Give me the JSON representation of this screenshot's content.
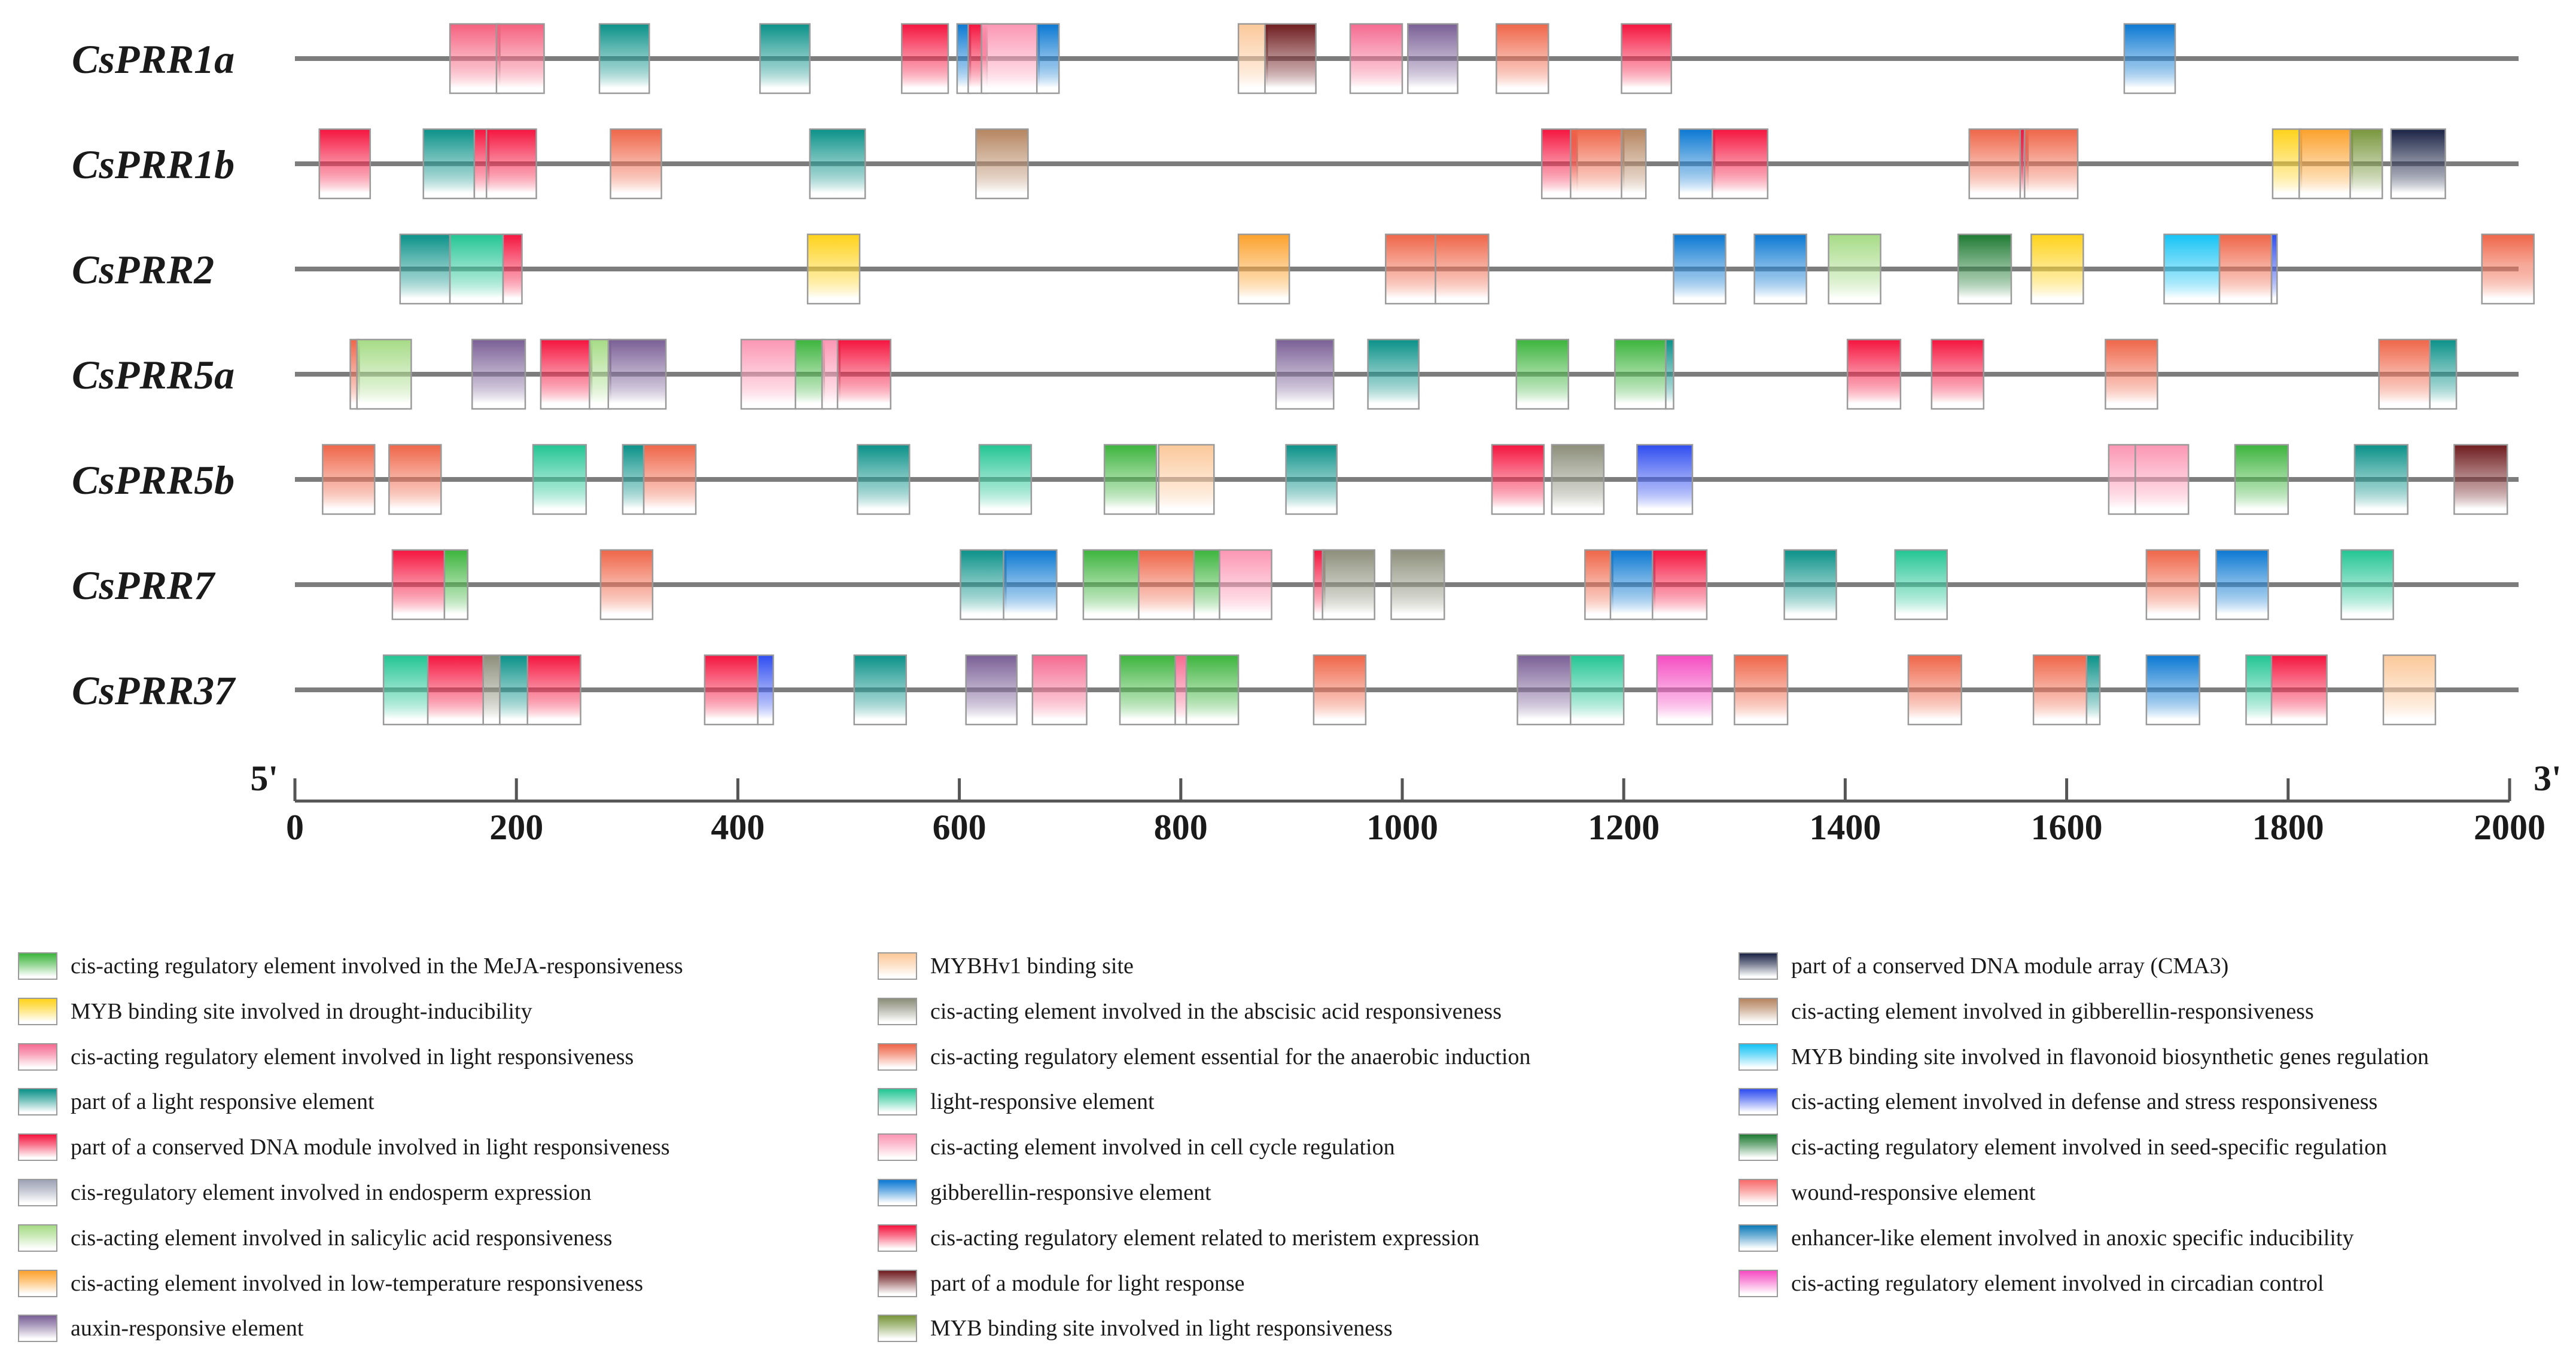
{
  "genes": [
    {
      "name": "CsPRR1a",
      "elements": [
        {
          "start": 140,
          "end": 185,
          "type": "wound-resp"
        },
        {
          "start": 182,
          "end": 225,
          "type": "wound-resp"
        },
        {
          "start": 275,
          "end": 320,
          "type": "light-part"
        },
        {
          "start": 420,
          "end": 465,
          "type": "light-part"
        },
        {
          "start": 548,
          "end": 590,
          "type": "dna-module"
        },
        {
          "start": 598,
          "end": 610,
          "type": "ga-resp"
        },
        {
          "start": 608,
          "end": 625,
          "type": "dna-module"
        },
        {
          "start": 620,
          "end": 672,
          "type": "cell-cycle"
        },
        {
          "start": 670,
          "end": 690,
          "type": "ga-resp"
        },
        {
          "start": 852,
          "end": 878,
          "type": "mybhv1"
        },
        {
          "start": 876,
          "end": 922,
          "type": "light-module"
        },
        {
          "start": 953,
          "end": 1000,
          "type": "light-resp-reg"
        },
        {
          "start": 1005,
          "end": 1050,
          "type": "auxin"
        },
        {
          "start": 1085,
          "end": 1132,
          "type": "anaerobic"
        },
        {
          "start": 1198,
          "end": 1243,
          "type": "dna-module"
        },
        {
          "start": 1652,
          "end": 1698,
          "type": "ga-resp"
        }
      ]
    },
    {
      "name": "CsPRR1b",
      "elements": [
        {
          "start": 22,
          "end": 68,
          "type": "dna-module"
        },
        {
          "start": 116,
          "end": 162,
          "type": "light-part"
        },
        {
          "start": 162,
          "end": 175,
          "type": "dna-module"
        },
        {
          "start": 173,
          "end": 218,
          "type": "dna-module"
        },
        {
          "start": 285,
          "end": 331,
          "type": "anaerobic"
        },
        {
          "start": 465,
          "end": 515,
          "type": "light-part"
        },
        {
          "start": 615,
          "end": 662,
          "type": "ga-resp-cis"
        },
        {
          "start": 1126,
          "end": 1158,
          "type": "dna-module"
        },
        {
          "start": 1152,
          "end": 1200,
          "type": "anaerobic"
        },
        {
          "start": 1198,
          "end": 1220,
          "type": "ga-resp-cis"
        },
        {
          "start": 1250,
          "end": 1282,
          "type": "ga-resp"
        },
        {
          "start": 1280,
          "end": 1330,
          "type": "dna-module"
        },
        {
          "start": 1512,
          "end": 1560,
          "type": "anaerobic"
        },
        {
          "start": 1558,
          "end": 1565,
          "type": "dna-module"
        },
        {
          "start": 1562,
          "end": 1610,
          "type": "anaerobic"
        },
        {
          "start": 1786,
          "end": 1812,
          "type": "drought"
        },
        {
          "start": 1810,
          "end": 1858,
          "type": "low-temp"
        },
        {
          "start": 1856,
          "end": 1885,
          "type": "myb-light"
        },
        {
          "start": 1893,
          "end": 1942,
          "type": "cma3"
        }
      ]
    },
    {
      "name": "CsPRR2",
      "elements": [
        {
          "start": 95,
          "end": 140,
          "type": "light-part"
        },
        {
          "start": 140,
          "end": 188,
          "type": "light-resp"
        },
        {
          "start": 188,
          "end": 205,
          "type": "dna-module"
        },
        {
          "start": 463,
          "end": 510,
          "type": "drought"
        },
        {
          "start": 852,
          "end": 898,
          "type": "low-temp"
        },
        {
          "start": 985,
          "end": 1030,
          "type": "anaerobic"
        },
        {
          "start": 1030,
          "end": 1078,
          "type": "anaerobic"
        },
        {
          "start": 1245,
          "end": 1292,
          "type": "ga-resp"
        },
        {
          "start": 1318,
          "end": 1365,
          "type": "ga-resp"
        },
        {
          "start": 1385,
          "end": 1432,
          "type": "salicylic"
        },
        {
          "start": 1502,
          "end": 1550,
          "type": "seed"
        },
        {
          "start": 1568,
          "end": 1615,
          "type": "drought"
        },
        {
          "start": 1688,
          "end": 1738,
          "type": "flavonoid"
        },
        {
          "start": 1738,
          "end": 1785,
          "type": "anaerobic"
        },
        {
          "start": 1785,
          "end": 1790,
          "type": "defense"
        },
        {
          "start": 1975,
          "end": 2022,
          "type": "anaerobic"
        }
      ]
    },
    {
      "name": "CsPRR5a",
      "elements": [
        {
          "start": 50,
          "end": 58,
          "type": "anaerobic"
        },
        {
          "start": 56,
          "end": 105,
          "type": "salicylic"
        },
        {
          "start": 160,
          "end": 208,
          "type": "auxin"
        },
        {
          "start": 222,
          "end": 268,
          "type": "dna-module"
        },
        {
          "start": 266,
          "end": 285,
          "type": "salicylic"
        },
        {
          "start": 283,
          "end": 335,
          "type": "auxin"
        },
        {
          "start": 403,
          "end": 452,
          "type": "cell-cycle"
        },
        {
          "start": 452,
          "end": 478,
          "type": "meja"
        },
        {
          "start": 476,
          "end": 492,
          "type": "cell-cycle"
        },
        {
          "start": 490,
          "end": 538,
          "type": "dna-module"
        },
        {
          "start": 886,
          "end": 938,
          "type": "auxin"
        },
        {
          "start": 969,
          "end": 1015,
          "type": "light-part"
        },
        {
          "start": 1103,
          "end": 1150,
          "type": "meja"
        },
        {
          "start": 1192,
          "end": 1238,
          "type": "meja"
        },
        {
          "start": 1238,
          "end": 1245,
          "type": "light-part"
        },
        {
          "start": 1402,
          "end": 1450,
          "type": "dna-module"
        },
        {
          "start": 1478,
          "end": 1525,
          "type": "dna-module"
        },
        {
          "start": 1635,
          "end": 1682,
          "type": "anaerobic"
        },
        {
          "start": 1882,
          "end": 1928,
          "type": "anaerobic"
        },
        {
          "start": 1928,
          "end": 1952,
          "type": "light-part"
        }
      ]
    },
    {
      "name": "CsPRR5b",
      "elements": [
        {
          "start": 25,
          "end": 72,
          "type": "anaerobic"
        },
        {
          "start": 85,
          "end": 132,
          "type": "anaerobic"
        },
        {
          "start": 215,
          "end": 263,
          "type": "light-resp"
        },
        {
          "start": 296,
          "end": 315,
          "type": "light-part"
        },
        {
          "start": 315,
          "end": 362,
          "type": "anaerobic"
        },
        {
          "start": 508,
          "end": 555,
          "type": "light-part"
        },
        {
          "start": 618,
          "end": 665,
          "type": "light-resp"
        },
        {
          "start": 731,
          "end": 778,
          "type": "meja"
        },
        {
          "start": 780,
          "end": 830,
          "type": "mybhv1"
        },
        {
          "start": 895,
          "end": 941,
          "type": "light-part"
        },
        {
          "start": 1081,
          "end": 1128,
          "type": "dna-module"
        },
        {
          "start": 1135,
          "end": 1182,
          "type": "aba"
        },
        {
          "start": 1212,
          "end": 1262,
          "type": "defense"
        },
        {
          "start": 1638,
          "end": 1662,
          "type": "cell-cycle"
        },
        {
          "start": 1662,
          "end": 1710,
          "type": "cell-cycle"
        },
        {
          "start": 1752,
          "end": 1800,
          "type": "meja"
        },
        {
          "start": 1860,
          "end": 1908,
          "type": "light-part"
        },
        {
          "start": 1950,
          "end": 1998,
          "type": "light-module"
        }
      ]
    },
    {
      "name": "CsPRR7",
      "elements": [
        {
          "start": 88,
          "end": 135,
          "type": "dna-module"
        },
        {
          "start": 135,
          "end": 156,
          "type": "meja"
        },
        {
          "start": 276,
          "end": 323,
          "type": "anaerobic"
        },
        {
          "start": 601,
          "end": 642,
          "type": "light-part"
        },
        {
          "start": 640,
          "end": 688,
          "type": "ga-resp"
        },
        {
          "start": 712,
          "end": 762,
          "type": "meja"
        },
        {
          "start": 762,
          "end": 812,
          "type": "anaerobic"
        },
        {
          "start": 812,
          "end": 835,
          "type": "meja"
        },
        {
          "start": 835,
          "end": 882,
          "type": "cell-cycle"
        },
        {
          "start": 920,
          "end": 930,
          "type": "dna-module"
        },
        {
          "start": 928,
          "end": 975,
          "type": "aba"
        },
        {
          "start": 990,
          "end": 1038,
          "type": "aba"
        },
        {
          "start": 1165,
          "end": 1190,
          "type": "anaerobic"
        },
        {
          "start": 1188,
          "end": 1228,
          "type": "ga-resp"
        },
        {
          "start": 1226,
          "end": 1275,
          "type": "dna-module"
        },
        {
          "start": 1345,
          "end": 1392,
          "type": "light-part"
        },
        {
          "start": 1445,
          "end": 1492,
          "type": "light-resp"
        },
        {
          "start": 1672,
          "end": 1720,
          "type": "anaerobic"
        },
        {
          "start": 1735,
          "end": 1782,
          "type": "ga-resp"
        },
        {
          "start": 1848,
          "end": 1895,
          "type": "light-resp"
        }
      ]
    },
    {
      "name": "CsPRR37",
      "elements": [
        {
          "start": 80,
          "end": 120,
          "type": "light-resp"
        },
        {
          "start": 120,
          "end": 170,
          "type": "dna-module"
        },
        {
          "start": 170,
          "end": 185,
          "type": "aba"
        },
        {
          "start": 185,
          "end": 210,
          "type": "light-part"
        },
        {
          "start": 210,
          "end": 258,
          "type": "dna-module"
        },
        {
          "start": 370,
          "end": 418,
          "type": "dna-module"
        },
        {
          "start": 418,
          "end": 432,
          "type": "defense"
        },
        {
          "start": 505,
          "end": 552,
          "type": "light-part"
        },
        {
          "start": 606,
          "end": 652,
          "type": "auxin"
        },
        {
          "start": 666,
          "end": 715,
          "type": "light-resp-reg"
        },
        {
          "start": 745,
          "end": 795,
          "type": "meja"
        },
        {
          "start": 795,
          "end": 805,
          "type": "light-resp-reg"
        },
        {
          "start": 805,
          "end": 852,
          "type": "meja"
        },
        {
          "start": 920,
          "end": 967,
          "type": "anaerobic"
        },
        {
          "start": 1104,
          "end": 1152,
          "type": "auxin"
        },
        {
          "start": 1152,
          "end": 1200,
          "type": "light-resp"
        },
        {
          "start": 1230,
          "end": 1280,
          "type": "circadian"
        },
        {
          "start": 1300,
          "end": 1348,
          "type": "anaerobic"
        },
        {
          "start": 1457,
          "end": 1505,
          "type": "anaerobic"
        },
        {
          "start": 1570,
          "end": 1618,
          "type": "anaerobic"
        },
        {
          "start": 1618,
          "end": 1630,
          "type": "light-part"
        },
        {
          "start": 1672,
          "end": 1720,
          "type": "ga-resp"
        },
        {
          "start": 1762,
          "end": 1785,
          "type": "light-resp"
        },
        {
          "start": 1785,
          "end": 1835,
          "type": "dna-module"
        },
        {
          "start": 1886,
          "end": 1933,
          "type": "mybhv1"
        }
      ]
    }
  ],
  "axis": {
    "min": 0,
    "max": 2000,
    "tick_step": 200,
    "tick_labels": [
      "0",
      "200",
      "400",
      "600",
      "800",
      "1000",
      "1200",
      "1400",
      "1600",
      "1800",
      "2000"
    ],
    "left_end": "5'",
    "right_end": "3'"
  },
  "element_types": {
    "meja": {
      "label": "cis-acting regulatory element involved in the MeJA-responsiveness",
      "color": "#3cb43c"
    },
    "drought": {
      "label": "MYB binding site involved in drought-inducibility",
      "color": "#ffd21a"
    },
    "light-resp-reg": {
      "label": "cis-acting regulatory element involved in light responsiveness",
      "color": "#f56a90"
    },
    "light-part": {
      "label": "part of a light responsive element",
      "color": "#0a9188"
    },
    "dna-module": {
      "label": "part of a conserved DNA module involved in light responsiveness",
      "color": "#f5143e"
    },
    "endosperm": {
      "label": "cis-regulatory element involved in endosperm expression",
      "color": "#9da2b5"
    },
    "salicylic": {
      "label": "cis-acting element involved in salicylic acid responsiveness",
      "color": "#a6db86"
    },
    "low-temp": {
      "label": "cis-acting element involved in low-temperature responsiveness",
      "color": "#fca12c"
    },
    "auxin": {
      "label": "auxin-responsive element",
      "color": "#7a5f96"
    },
    "mybhv1": {
      "label": "MYBHv1 binding site",
      "color": "#fcc89a"
    },
    "aba": {
      "label": "cis-acting element involved in the abscisic acid responsiveness",
      "color": "#8c8e7a"
    },
    "anaerobic": {
      "label": "cis-acting regulatory element essential for the anaerobic induction",
      "color": "#ef6548"
    },
    "light-resp": {
      "label": "light-responsive element",
      "color": "#22c593"
    },
    "cell-cycle": {
      "label": "cis-acting element involved in cell cycle regulation",
      "color": "#fc96b4"
    },
    "ga-resp": {
      "label": "gibberellin-responsive element",
      "color": "#0a78d2"
    },
    "meristem": {
      "label": "cis-acting regulatory element related to meristem expression",
      "color": "#f5143e"
    },
    "light-module": {
      "label": "part of a module for light response",
      "color": "#6e1b1e"
    },
    "myb-light": {
      "label": "MYB binding site involved in light responsiveness",
      "color": "#78963c"
    },
    "cma3": {
      "label": "part of a conserved DNA module array (CMA3)",
      "color": "#1a2345"
    },
    "ga-resp-cis": {
      "label": "cis-acting element involved in gibberellin-responsiveness",
      "color": "#b58560"
    },
    "flavonoid": {
      "label": "MYB binding site involved in flavonoid biosynthetic genes regulation",
      "color": "#14c3f5"
    },
    "defense": {
      "label": "cis-acting element involved in defense and stress responsiveness",
      "color": "#2e4cf0"
    },
    "seed": {
      "label": "cis-acting regulatory element involved in seed-specific regulation",
      "color": "#1e7a32"
    },
    "wound": {
      "label": "wound-responsive element",
      "color": "#f76a6a"
    },
    "anoxic": {
      "label": "enhancer-like element involved in anoxic specific inducibility",
      "color": "#0d7ab8"
    },
    "circadian": {
      "label": "cis-acting regulatory element involved in circadian control",
      "color": "#f54cc2"
    },
    "wound-resp": {
      "label": "",
      "color": "#f5607e"
    }
  },
  "legend_columns": [
    [
      "meja",
      "drought",
      "light-resp-reg",
      "light-part",
      "dna-module",
      "endosperm",
      "salicylic",
      "low-temp",
      "auxin"
    ],
    [
      "mybhv1",
      "aba",
      "anaerobic",
      "light-resp",
      "cell-cycle",
      "ga-resp",
      "meristem",
      "light-module",
      "myb-light"
    ],
    [
      "cma3",
      "ga-resp-cis",
      "flavonoid",
      "defense",
      "seed",
      "wound",
      "anoxic",
      "circadian"
    ]
  ]
}
